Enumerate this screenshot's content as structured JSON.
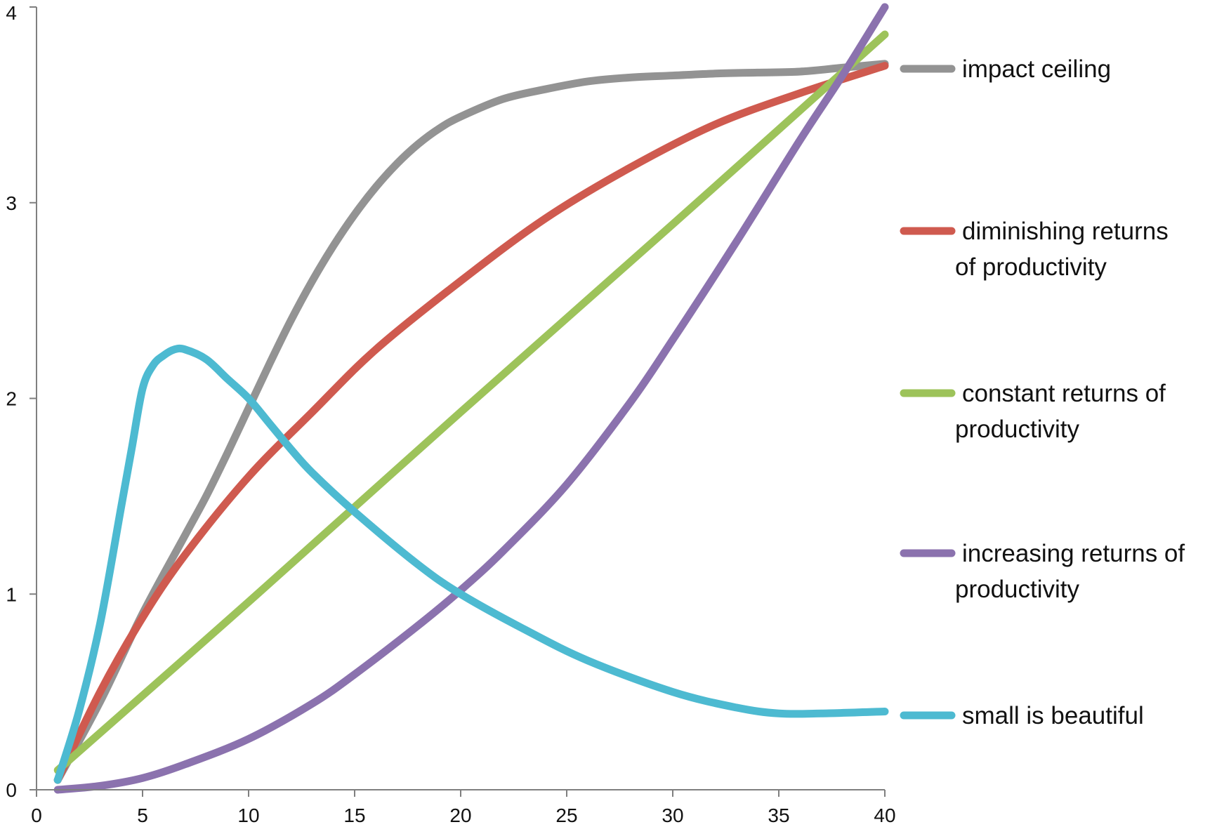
{
  "chart_data": {
    "type": "line",
    "title": "",
    "xlabel": "",
    "ylabel": "",
    "xlim": [
      0,
      40
    ],
    "ylim": [
      0,
      4
    ],
    "x_ticks": [
      "0",
      "5",
      "10",
      "15",
      "20",
      "25",
      "30",
      "35",
      "40"
    ],
    "y_ticks": [
      "0",
      "1",
      "2",
      "3",
      "4"
    ],
    "grid": false,
    "legend_position": "right",
    "series": [
      {
        "name": "impact ceiling",
        "legend_lines": [
          "impact ceiling"
        ],
        "color": "#939393",
        "x": [
          1,
          3,
          5,
          7,
          8,
          9,
          10,
          11,
          12,
          13,
          14,
          15,
          16,
          17,
          18,
          19,
          20,
          22,
          24,
          26,
          28,
          30,
          32,
          34,
          36,
          38,
          40
        ],
        "y": [
          0.05,
          0.45,
          0.9,
          1.3,
          1.5,
          1.72,
          1.95,
          2.18,
          2.4,
          2.6,
          2.78,
          2.94,
          3.08,
          3.2,
          3.3,
          3.38,
          3.44,
          3.53,
          3.58,
          3.62,
          3.64,
          3.65,
          3.66,
          3.665,
          3.67,
          3.69,
          3.71
        ]
      },
      {
        "name": "diminishing returns of productivity",
        "legend_lines": [
          "diminishing returns",
          "of productivity"
        ],
        "color": "#cf5a4f",
        "x": [
          1,
          3,
          5,
          7,
          10,
          13,
          16,
          20,
          24,
          28,
          32,
          36,
          40
        ],
        "y": [
          0.05,
          0.5,
          0.88,
          1.2,
          1.6,
          1.93,
          2.25,
          2.6,
          2.92,
          3.18,
          3.4,
          3.56,
          3.7
        ]
      },
      {
        "name": "constant returns of productivity",
        "legend_lines": [
          "constant returns of",
          "productivity"
        ],
        "color": "#9dc35a",
        "x": [
          1,
          10,
          20,
          30,
          40
        ],
        "y": [
          0.1,
          0.96,
          1.93,
          2.89,
          3.86
        ]
      },
      {
        "name": "increasing returns of productivity",
        "legend_lines": [
          "increasing returns of",
          "productivity"
        ],
        "color": "#8b72ae",
        "x": [
          1,
          3,
          5,
          7,
          10,
          13,
          15,
          18,
          20,
          22,
          25,
          28,
          30,
          33,
          36,
          38,
          40
        ],
        "y": [
          0.0,
          0.02,
          0.06,
          0.13,
          0.26,
          0.44,
          0.59,
          0.84,
          1.02,
          1.22,
          1.56,
          1.98,
          2.3,
          2.8,
          3.32,
          3.65,
          4.0
        ]
      },
      {
        "name": "small is beautiful",
        "legend_lines": [
          "small is beautiful"
        ],
        "color": "#4dbad1",
        "x": [
          1,
          2,
          3,
          4,
          4.5,
          5,
          5.5,
          6,
          6.5,
          7,
          8,
          9,
          10,
          11,
          12,
          13,
          15,
          18,
          20,
          23,
          26,
          30,
          33,
          35,
          37,
          40
        ],
        "y": [
          0.05,
          0.4,
          0.85,
          1.45,
          1.75,
          2.05,
          2.17,
          2.22,
          2.25,
          2.25,
          2.2,
          2.1,
          2.0,
          1.87,
          1.74,
          1.62,
          1.42,
          1.15,
          1.0,
          0.82,
          0.66,
          0.5,
          0.42,
          0.39,
          0.39,
          0.4
        ]
      }
    ]
  }
}
